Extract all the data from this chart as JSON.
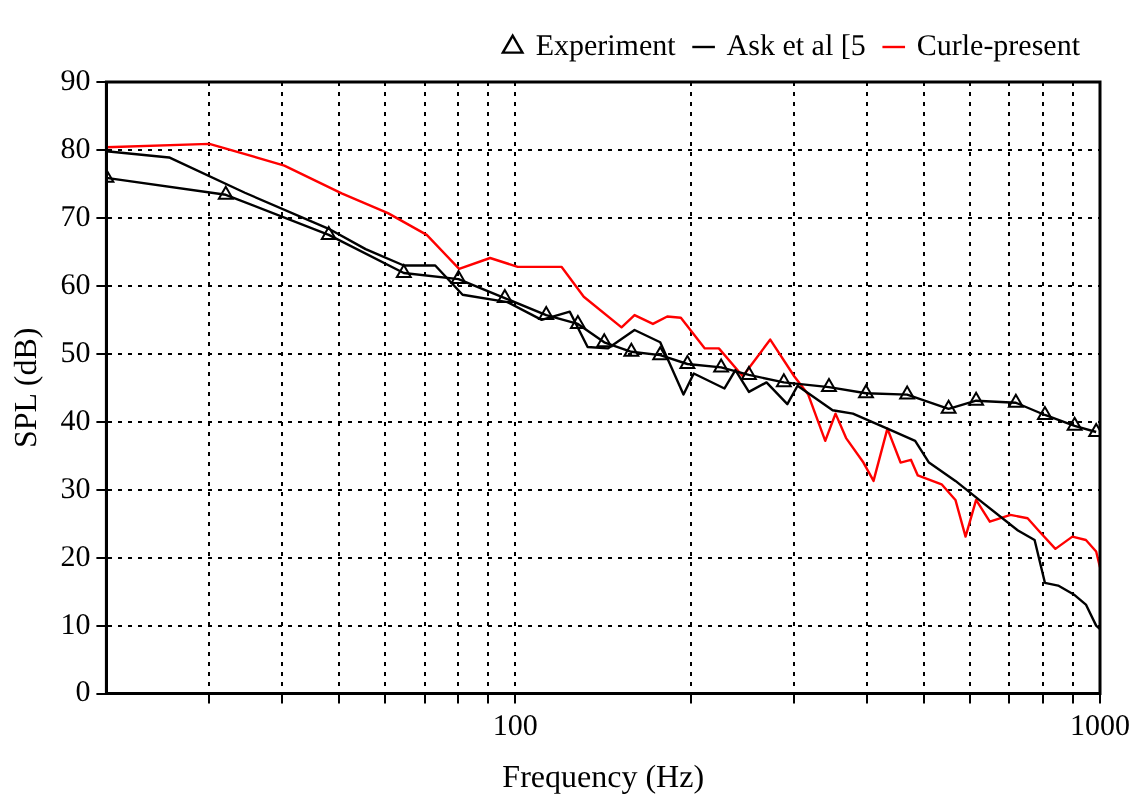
{
  "chart_data": {
    "type": "line",
    "xlabel": "Frequency (Hz)",
    "ylabel": "SPL (dB)",
    "log": "x",
    "grid": true,
    "legend": "top right",
    "line_style": "solid",
    "xlim": [
      20,
      1000
    ],
    "ylim": [
      0,
      90
    ],
    "xticks": [
      {
        "value": 30,
        "label": null
      },
      {
        "value": 40,
        "label": null
      },
      {
        "value": 50,
        "label": null
      },
      {
        "value": 60,
        "label": null
      },
      {
        "value": 70,
        "label": null
      },
      {
        "value": 80,
        "label": null
      },
      {
        "value": 90,
        "label": null
      },
      100,
      {
        "value": 200,
        "label": null
      },
      {
        "value": 300,
        "label": null
      },
      {
        "value": 400,
        "label": null
      },
      {
        "value": 500,
        "label": null
      },
      {
        "value": 600,
        "label": null
      },
      {
        "value": 700,
        "label": null
      },
      {
        "value": 800,
        "label": null
      },
      {
        "value": 900,
        "label": null
      },
      1000
    ],
    "yticks": [
      0,
      10,
      20,
      30,
      40,
      50,
      60,
      70,
      80,
      90
    ],
    "series": [
      {
        "name": "Experiment",
        "color": "#000000",
        "marker": "triangle",
        "x": [
          20,
          32,
          48,
          64.5,
          80,
          96,
          113,
          128,
          142,
          158,
          177,
          197,
          225,
          251,
          288,
          344,
          398,
          468,
          551,
          614,
          718,
          805,
          905,
          985
        ],
        "values": [
          75.9,
          73.4,
          67.5,
          61.9,
          61,
          58.2,
          55.7,
          54.4,
          51.7,
          50.3,
          49.8,
          48.5,
          48,
          46.9,
          45.8,
          45.1,
          44.2,
          44,
          41.9,
          43.1,
          42.8,
          41,
          39.4,
          38.5
        ]
      },
      {
        "name": "Ask et al [5",
        "color": "#000000",
        "marker": "none",
        "x": [
          20,
          25.6,
          34.5,
          48,
          55.5,
          64.5,
          73,
          81.3,
          97,
          111,
          124,
          133,
          144,
          160,
          177,
          194,
          202,
          228,
          238,
          251,
          269,
          292,
          304,
          349,
          378,
          433,
          483,
          510,
          566,
          630,
          724,
          773,
          805,
          848,
          905,
          946,
          985,
          1000
        ],
        "values": [
          79.8,
          78.9,
          73.7,
          68.4,
          65.4,
          63,
          63,
          58.7,
          57.6,
          55,
          56.2,
          51,
          50.8,
          53.5,
          51.7,
          44,
          47.1,
          44.9,
          47.6,
          44.4,
          45.8,
          42.6,
          45.3,
          41.7,
          41.2,
          39,
          37.2,
          34,
          31.3,
          28.1,
          24,
          22.6,
          16.3,
          15.9,
          14.5,
          13.1,
          10,
          9.5
        ]
      },
      {
        "name": "Curle-present",
        "color": "#ff0000",
        "marker": "none",
        "x": [
          20,
          30,
          40.3,
          50.5,
          60.6,
          70.6,
          80.2,
          90.6,
          101,
          120,
          131,
          152,
          160,
          172,
          182,
          192,
          211,
          223,
          245,
          273,
          300,
          317,
          339,
          353,
          368,
          394,
          410,
          433,
          456,
          475,
          488,
          536,
          566,
          589,
          614,
          648,
          703,
          752,
          785,
          839,
          897,
          946,
          985,
          1000
        ],
        "values": [
          80.4,
          80.9,
          77.7,
          73.6,
          70.7,
          67.5,
          62.5,
          64.1,
          62.8,
          62.8,
          58.4,
          53.9,
          55.7,
          54.4,
          55.5,
          55.3,
          50.8,
          50.8,
          46.7,
          52.1,
          46.7,
          44,
          37.2,
          41.2,
          37.6,
          34,
          31.3,
          39,
          34,
          34.4,
          32.1,
          30.8,
          28.5,
          23.1,
          28.5,
          25.3,
          26.3,
          25.8,
          24,
          21.3,
          23.1,
          22.6,
          20.9,
          18.6
        ]
      }
    ]
  }
}
